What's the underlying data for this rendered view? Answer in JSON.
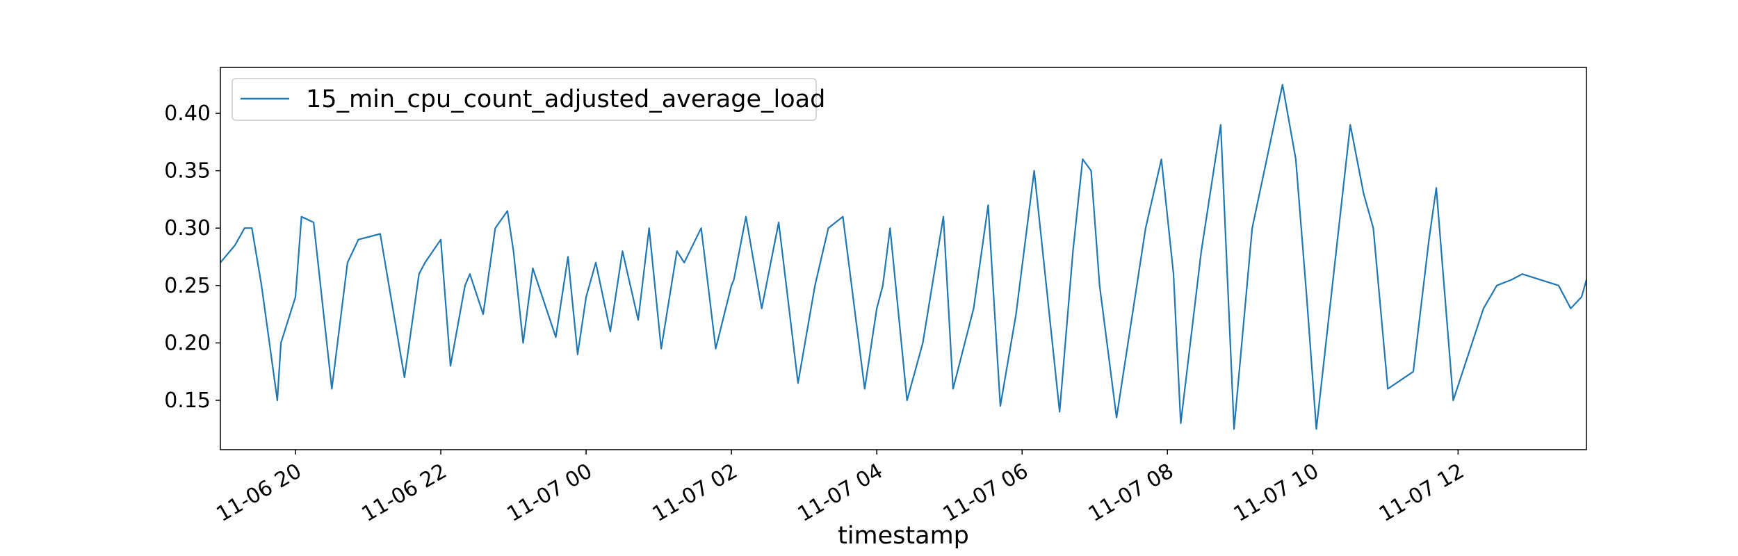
{
  "chart_data": {
    "type": "line",
    "title": "",
    "xlabel": "timestamp",
    "ylabel": "",
    "x_ticks": [
      "2023-11-06 20:00",
      "2023-11-06 22:00",
      "2023-11-07 00:00",
      "2023-11-07 02:00",
      "2023-11-07 04:00",
      "2023-11-07 06:00",
      "2023-11-07 08:00",
      "2023-11-07 10:00",
      "2023-11-07 12:00"
    ],
    "x_tick_labels": [
      "11-06 20",
      "11-06 22",
      "11-07 00",
      "11-07 02",
      "11-07 04",
      "11-07 06",
      "11-07 08",
      "11-07 10",
      "11-07 12"
    ],
    "xlim": [
      "2023-11-06 18:58",
      "2023-11-07 13:46"
    ],
    "y_ticks": [
      0.15,
      0.2,
      0.25,
      0.3,
      0.35,
      0.4
    ],
    "y_tick_labels": [
      "0.15",
      "0.20",
      "0.25",
      "0.30",
      "0.35",
      "0.40"
    ],
    "ylim": [
      0.107,
      0.44
    ],
    "grid": false,
    "legend_position": "top-left",
    "series": [
      {
        "name": "15_min_cpu_count_adjusted_average_load",
        "color": "#1f77b4",
        "x": [
          "2023-11-06 18:58",
          "2023-11-06 19:10",
          "2023-11-06 19:18",
          "2023-11-06 19:24",
          "2023-11-06 19:32",
          "2023-11-06 19:45",
          "2023-11-06 19:48",
          "2023-11-06 20:00",
          "2023-11-06 20:05",
          "2023-11-06 20:15",
          "2023-11-06 20:30",
          "2023-11-06 20:43",
          "2023-11-06 20:52",
          "2023-11-06 21:10",
          "2023-11-06 21:30",
          "2023-11-06 21:42",
          "2023-11-06 21:47",
          "2023-11-06 22:00",
          "2023-11-06 22:08",
          "2023-11-06 22:20",
          "2023-11-06 22:24",
          "2023-11-06 22:35",
          "2023-11-06 22:45",
          "2023-11-06 22:55",
          "2023-11-06 23:00",
          "2023-11-06 23:08",
          "2023-11-06 23:16",
          "2023-11-06 23:35",
          "2023-11-06 23:45",
          "2023-11-06 23:53",
          "2023-11-07 00:00",
          "2023-11-07 00:08",
          "2023-11-07 00:20",
          "2023-11-07 00:30",
          "2023-11-07 00:43",
          "2023-11-07 00:52",
          "2023-11-07 01:02",
          "2023-11-07 01:15",
          "2023-11-07 01:21",
          "2023-11-07 01:35",
          "2023-11-07 01:47",
          "2023-11-07 02:00",
          "2023-11-07 02:02",
          "2023-11-07 02:12",
          "2023-11-07 02:25",
          "2023-11-07 02:39",
          "2023-11-07 02:55",
          "2023-11-07 03:09",
          "2023-11-07 03:20",
          "2023-11-07 03:32",
          "2023-11-07 03:50",
          "2023-11-07 04:00",
          "2023-11-07 04:05",
          "2023-11-07 04:11",
          "2023-11-07 04:25",
          "2023-11-07 04:38",
          "2023-11-07 04:55",
          "2023-11-07 05:03",
          "2023-11-07 05:20",
          "2023-11-07 05:32",
          "2023-11-07 05:42",
          "2023-11-07 05:55",
          "2023-11-07 06:10",
          "2023-11-07 06:31",
          "2023-11-07 06:42",
          "2023-11-07 06:50",
          "2023-11-07 06:57",
          "2023-11-07 07:04",
          "2023-11-07 07:18",
          "2023-11-07 07:42",
          "2023-11-07 07:55",
          "2023-11-07 08:05",
          "2023-11-07 08:11",
          "2023-11-07 08:28",
          "2023-11-07 08:44",
          "2023-11-07 08:55",
          "2023-11-07 09:10",
          "2023-11-07 09:35",
          "2023-11-07 09:46",
          "2023-11-07 09:55",
          "2023-11-07 10:03",
          "2023-11-07 10:31",
          "2023-11-07 10:42",
          "2023-11-07 10:50",
          "2023-11-07 11:02",
          "2023-11-07 11:23",
          "2023-11-07 11:36",
          "2023-11-07 11:42",
          "2023-11-07 11:56",
          "2023-11-07 12:21",
          "2023-11-07 12:32",
          "2023-11-07 12:44",
          "2023-11-07 12:53",
          "2023-11-07 13:23",
          "2023-11-07 13:33",
          "2023-11-07 13:42",
          "2023-11-07 13:46"
        ],
        "y": [
          0.27,
          0.285,
          0.3,
          0.3,
          0.25,
          0.15,
          0.2,
          0.24,
          0.31,
          0.305,
          0.16,
          0.27,
          0.29,
          0.295,
          0.17,
          0.26,
          0.27,
          0.29,
          0.18,
          0.25,
          0.26,
          0.225,
          0.3,
          0.315,
          0.28,
          0.2,
          0.265,
          0.205,
          0.275,
          0.19,
          0.24,
          0.27,
          0.21,
          0.28,
          0.22,
          0.3,
          0.195,
          0.28,
          0.27,
          0.3,
          0.195,
          0.25,
          0.255,
          0.31,
          0.23,
          0.305,
          0.165,
          0.25,
          0.3,
          0.31,
          0.16,
          0.23,
          0.25,
          0.3,
          0.15,
          0.2,
          0.31,
          0.16,
          0.23,
          0.32,
          0.145,
          0.225,
          0.35,
          0.14,
          0.28,
          0.36,
          0.35,
          0.25,
          0.135,
          0.3,
          0.36,
          0.26,
          0.13,
          0.28,
          0.39,
          0.125,
          0.3,
          0.425,
          0.36,
          0.24,
          0.125,
          0.39,
          0.33,
          0.3,
          0.16,
          0.175,
          0.29,
          0.335,
          0.15,
          0.23,
          0.25,
          0.255,
          0.26,
          0.25,
          0.23,
          0.24,
          0.255
        ]
      }
    ]
  }
}
